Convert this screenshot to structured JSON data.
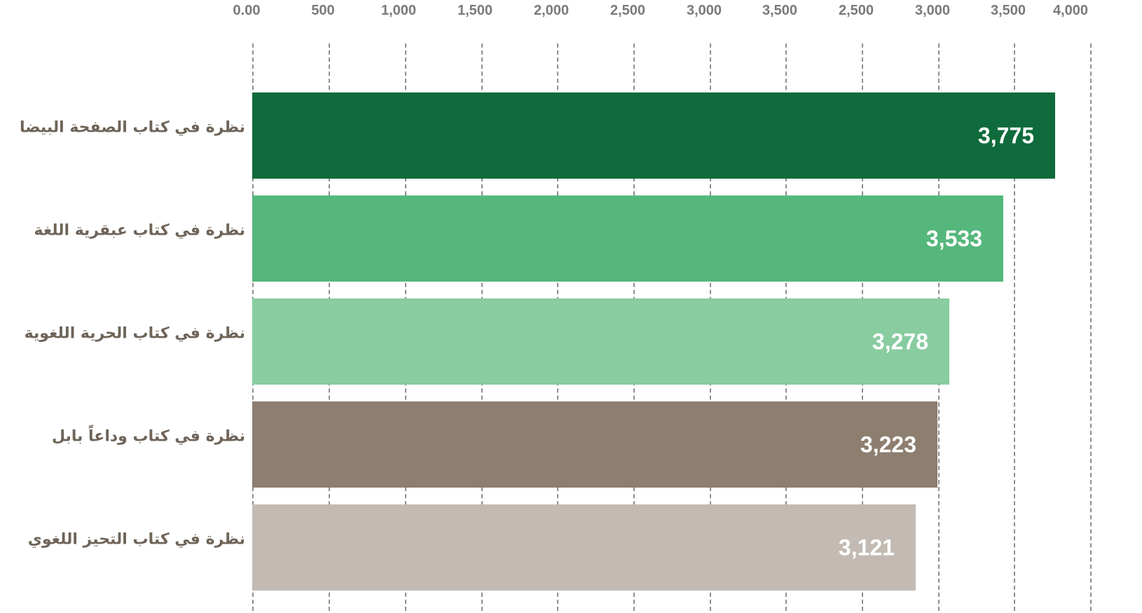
{
  "chart_data": {
    "type": "bar",
    "orientation": "horizontal",
    "categories": [
      "نظرة في كتاب الصفحة البيضا",
      "نظرة في كتاب عبقرية اللغة",
      "نظرة في كتاب الحرية اللغوية",
      "نظرة في كتاب وداعاً بابل",
      "نظرة في كتاب التحيز اللغوي"
    ],
    "values": [
      3775,
      3533,
      3278,
      3223,
      3121
    ],
    "value_labels": [
      "3,775",
      "3,533",
      "3,278",
      "3,223",
      "3,121"
    ],
    "bar_colors": [
      "#0f6b3b",
      "#55b77c",
      "#88cca0",
      "#8d7e70",
      "#c3bbb3"
    ],
    "x_tick_labels": [
      "0.00",
      "500",
      "1,000",
      "1,500",
      "2,000",
      "2,500",
      "3,000",
      "3,500",
      "2,500",
      "3,000",
      "3,500",
      "4,000"
    ],
    "xlim": [
      0,
      5000
    ],
    "axis_position": "top",
    "grid": true
  }
}
